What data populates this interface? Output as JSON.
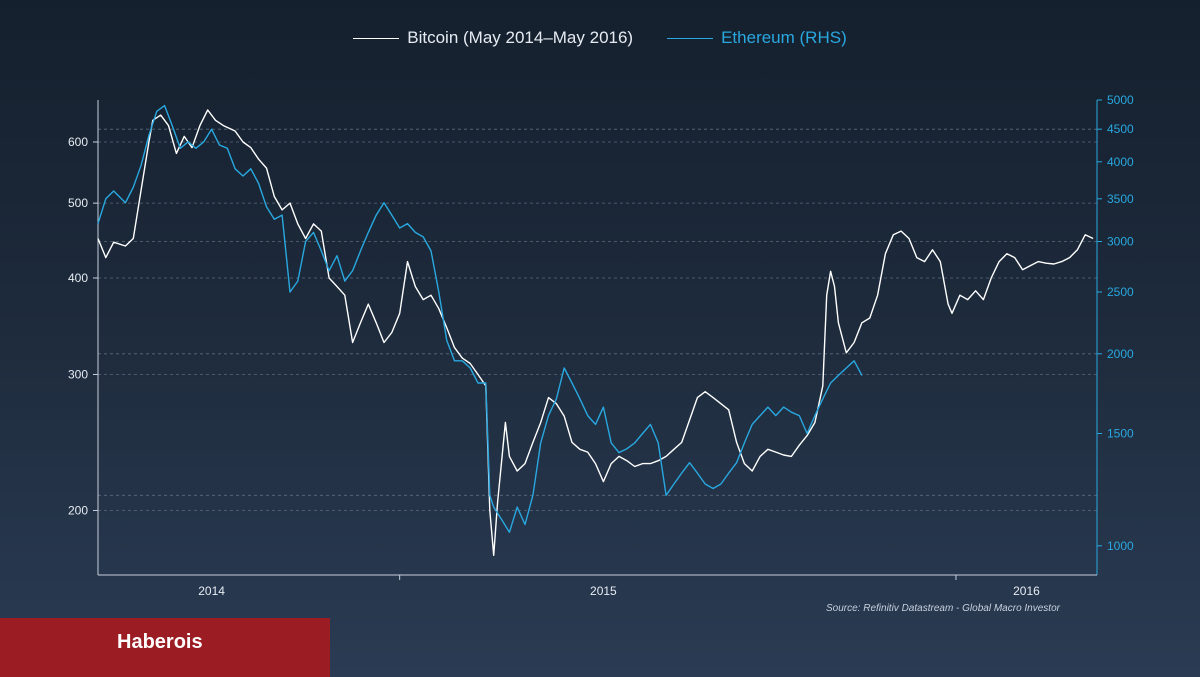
{
  "legend": {
    "items": [
      {
        "label": "Bitcoin (May 2014–May 2016)",
        "color": "#ffffff"
      },
      {
        "label": "Ethereum (RHS)",
        "color": "#29a8e0"
      }
    ]
  },
  "source": "Source: Refinitiv Datastream - Global Macro Investor",
  "brand": {
    "name": "Haberois",
    "color": "#9c1c23"
  },
  "chart_data": {
    "type": "line",
    "grid": true,
    "legend_position": "top-center",
    "x_axis": {
      "start": 2013.63,
      "end": 2016.18,
      "tick_labels": [
        {
          "label": "2014",
          "x": 2013.92
        },
        {
          "label": "2015",
          "x": 2014.92
        },
        {
          "label": "2016",
          "x": 2016.0
        }
      ],
      "tick_marks": [
        2014.4,
        2015.82
      ]
    },
    "y_left": {
      "scale": "log",
      "range": [
        165,
        680
      ],
      "ticks": [
        200,
        300,
        400,
        500,
        600
      ],
      "gridlines": [
        200,
        300,
        400,
        500,
        600
      ]
    },
    "y_right": {
      "scale": "log",
      "range": [
        900,
        5000
      ],
      "ticks": [
        1000,
        1500,
        2000,
        2500,
        3000,
        3500,
        4000,
        4500,
        5000
      ],
      "gridlines": [
        4500,
        3000,
        2000,
        1200
      ]
    },
    "series": [
      {
        "name": "Bitcoin (May 2014–May 2016)",
        "axis": "left",
        "color": "#ffffff",
        "points": [
          [
            2013.63,
            450
          ],
          [
            2013.65,
            425
          ],
          [
            2013.67,
            445
          ],
          [
            2013.7,
            440
          ],
          [
            2013.72,
            450
          ],
          [
            2013.74,
            520
          ],
          [
            2013.76,
            600
          ],
          [
            2013.77,
            640
          ],
          [
            2013.79,
            650
          ],
          [
            2013.81,
            630
          ],
          [
            2013.83,
            580
          ],
          [
            2013.85,
            610
          ],
          [
            2013.87,
            590
          ],
          [
            2013.89,
            630
          ],
          [
            2013.91,
            660
          ],
          [
            2013.93,
            640
          ],
          [
            2013.95,
            630
          ],
          [
            2013.98,
            620
          ],
          [
            2014.0,
            600
          ],
          [
            2014.02,
            590
          ],
          [
            2014.04,
            570
          ],
          [
            2014.06,
            555
          ],
          [
            2014.08,
            510
          ],
          [
            2014.1,
            490
          ],
          [
            2014.12,
            500
          ],
          [
            2014.14,
            470
          ],
          [
            2014.16,
            450
          ],
          [
            2014.18,
            470
          ],
          [
            2014.2,
            460
          ],
          [
            2014.22,
            400
          ],
          [
            2014.24,
            390
          ],
          [
            2014.26,
            380
          ],
          [
            2014.28,
            330
          ],
          [
            2014.3,
            350
          ],
          [
            2014.32,
            370
          ],
          [
            2014.34,
            350
          ],
          [
            2014.36,
            330
          ],
          [
            2014.38,
            340
          ],
          [
            2014.4,
            360
          ],
          [
            2014.42,
            420
          ],
          [
            2014.44,
            390
          ],
          [
            2014.46,
            375
          ],
          [
            2014.48,
            380
          ],
          [
            2014.5,
            365
          ],
          [
            2014.52,
            345
          ],
          [
            2014.54,
            325
          ],
          [
            2014.56,
            315
          ],
          [
            2014.58,
            310
          ],
          [
            2014.6,
            300
          ],
          [
            2014.62,
            290
          ],
          [
            2014.63,
            200
          ],
          [
            2014.64,
            175
          ],
          [
            2014.65,
            205
          ],
          [
            2014.67,
            260
          ],
          [
            2014.68,
            235
          ],
          [
            2014.7,
            225
          ],
          [
            2014.72,
            230
          ],
          [
            2014.74,
            245
          ],
          [
            2014.76,
            260
          ],
          [
            2014.78,
            280
          ],
          [
            2014.8,
            275
          ],
          [
            2014.82,
            265
          ],
          [
            2014.84,
            245
          ],
          [
            2014.86,
            240
          ],
          [
            2014.88,
            238
          ],
          [
            2014.9,
            230
          ],
          [
            2014.92,
            218
          ],
          [
            2014.94,
            230
          ],
          [
            2014.96,
            235
          ],
          [
            2014.98,
            232
          ],
          [
            2015.0,
            228
          ],
          [
            2015.02,
            230
          ],
          [
            2015.04,
            230
          ],
          [
            2015.06,
            232
          ],
          [
            2015.08,
            235
          ],
          [
            2015.1,
            240
          ],
          [
            2015.12,
            245
          ],
          [
            2015.14,
            262
          ],
          [
            2015.16,
            280
          ],
          [
            2015.18,
            285
          ],
          [
            2015.2,
            280
          ],
          [
            2015.22,
            275
          ],
          [
            2015.24,
            270
          ],
          [
            2015.26,
            245
          ],
          [
            2015.28,
            230
          ],
          [
            2015.3,
            225
          ],
          [
            2015.32,
            235
          ],
          [
            2015.34,
            240
          ],
          [
            2015.36,
            238
          ],
          [
            2015.38,
            236
          ],
          [
            2015.4,
            235
          ],
          [
            2015.42,
            243
          ],
          [
            2015.44,
            250
          ],
          [
            2015.46,
            260
          ],
          [
            2015.48,
            290
          ],
          [
            2015.49,
            380
          ],
          [
            2015.5,
            408
          ],
          [
            2015.51,
            390
          ],
          [
            2015.52,
            350
          ],
          [
            2015.54,
            320
          ],
          [
            2015.56,
            330
          ],
          [
            2015.58,
            350
          ],
          [
            2015.6,
            355
          ],
          [
            2015.62,
            380
          ],
          [
            2015.64,
            430
          ],
          [
            2015.66,
            455
          ],
          [
            2015.68,
            460
          ],
          [
            2015.7,
            450
          ],
          [
            2015.72,
            425
          ],
          [
            2015.74,
            420
          ],
          [
            2015.76,
            435
          ],
          [
            2015.78,
            420
          ],
          [
            2015.8,
            370
          ],
          [
            2015.81,
            360
          ],
          [
            2015.83,
            380
          ],
          [
            2015.85,
            375
          ],
          [
            2015.87,
            385
          ],
          [
            2015.89,
            375
          ],
          [
            2015.91,
            400
          ],
          [
            2015.93,
            420
          ],
          [
            2015.95,
            430
          ],
          [
            2015.97,
            425
          ],
          [
            2015.99,
            410
          ],
          [
            2016.01,
            415
          ],
          [
            2016.03,
            420
          ],
          [
            2016.05,
            418
          ],
          [
            2016.07,
            417
          ],
          [
            2016.09,
            420
          ],
          [
            2016.11,
            425
          ],
          [
            2016.13,
            435
          ],
          [
            2016.15,
            455
          ],
          [
            2016.17,
            450
          ]
        ]
      },
      {
        "name": "Ethereum (RHS)",
        "axis": "right",
        "color": "#29a8e0",
        "points": [
          [
            2013.63,
            3200
          ],
          [
            2013.65,
            3500
          ],
          [
            2013.67,
            3600
          ],
          [
            2013.7,
            3450
          ],
          [
            2013.72,
            3650
          ],
          [
            2013.74,
            3950
          ],
          [
            2013.76,
            4400
          ],
          [
            2013.78,
            4800
          ],
          [
            2013.8,
            4900
          ],
          [
            2013.82,
            4550
          ],
          [
            2013.84,
            4200
          ],
          [
            2013.86,
            4300
          ],
          [
            2013.88,
            4200
          ],
          [
            2013.9,
            4300
          ],
          [
            2013.92,
            4500
          ],
          [
            2013.94,
            4250
          ],
          [
            2013.96,
            4200
          ],
          [
            2013.98,
            3900
          ],
          [
            2014.0,
            3800
          ],
          [
            2014.02,
            3900
          ],
          [
            2014.04,
            3700
          ],
          [
            2014.06,
            3400
          ],
          [
            2014.08,
            3250
          ],
          [
            2014.1,
            3300
          ],
          [
            2014.12,
            2500
          ],
          [
            2014.14,
            2600
          ],
          [
            2014.16,
            3000
          ],
          [
            2014.18,
            3100
          ],
          [
            2014.2,
            2900
          ],
          [
            2014.22,
            2700
          ],
          [
            2014.24,
            2850
          ],
          [
            2014.26,
            2600
          ],
          [
            2014.28,
            2700
          ],
          [
            2014.3,
            2900
          ],
          [
            2014.32,
            3100
          ],
          [
            2014.34,
            3300
          ],
          [
            2014.36,
            3450
          ],
          [
            2014.38,
            3300
          ],
          [
            2014.4,
            3150
          ],
          [
            2014.42,
            3200
          ],
          [
            2014.44,
            3100
          ],
          [
            2014.46,
            3050
          ],
          [
            2014.48,
            2900
          ],
          [
            2014.5,
            2500
          ],
          [
            2014.52,
            2100
          ],
          [
            2014.54,
            1950
          ],
          [
            2014.56,
            1950
          ],
          [
            2014.58,
            1900
          ],
          [
            2014.6,
            1800
          ],
          [
            2014.62,
            1800
          ],
          [
            2014.63,
            1200
          ],
          [
            2014.64,
            1150
          ],
          [
            2014.66,
            1100
          ],
          [
            2014.68,
            1050
          ],
          [
            2014.7,
            1150
          ],
          [
            2014.72,
            1080
          ],
          [
            2014.74,
            1200
          ],
          [
            2014.76,
            1450
          ],
          [
            2014.78,
            1600
          ],
          [
            2014.8,
            1700
          ],
          [
            2014.82,
            1900
          ],
          [
            2014.84,
            1800
          ],
          [
            2014.86,
            1700
          ],
          [
            2014.88,
            1600
          ],
          [
            2014.9,
            1550
          ],
          [
            2014.92,
            1650
          ],
          [
            2014.94,
            1450
          ],
          [
            2014.96,
            1400
          ],
          [
            2014.98,
            1420
          ],
          [
            2015.0,
            1450
          ],
          [
            2015.02,
            1500
          ],
          [
            2015.04,
            1550
          ],
          [
            2015.06,
            1450
          ],
          [
            2015.08,
            1200
          ],
          [
            2015.1,
            1250
          ],
          [
            2015.12,
            1300
          ],
          [
            2015.14,
            1350
          ],
          [
            2015.16,
            1300
          ],
          [
            2015.18,
            1250
          ],
          [
            2015.2,
            1230
          ],
          [
            2015.22,
            1250
          ],
          [
            2015.24,
            1300
          ],
          [
            2015.26,
            1350
          ],
          [
            2015.28,
            1450
          ],
          [
            2015.3,
            1550
          ],
          [
            2015.32,
            1600
          ],
          [
            2015.34,
            1650
          ],
          [
            2015.36,
            1600
          ],
          [
            2015.38,
            1650
          ],
          [
            2015.4,
            1620
          ],
          [
            2015.42,
            1600
          ],
          [
            2015.44,
            1500
          ],
          [
            2015.46,
            1600
          ],
          [
            2015.48,
            1700
          ],
          [
            2015.5,
            1800
          ],
          [
            2015.52,
            1850
          ],
          [
            2015.54,
            1900
          ],
          [
            2015.56,
            1950
          ],
          [
            2015.58,
            1850
          ]
        ]
      }
    ]
  }
}
